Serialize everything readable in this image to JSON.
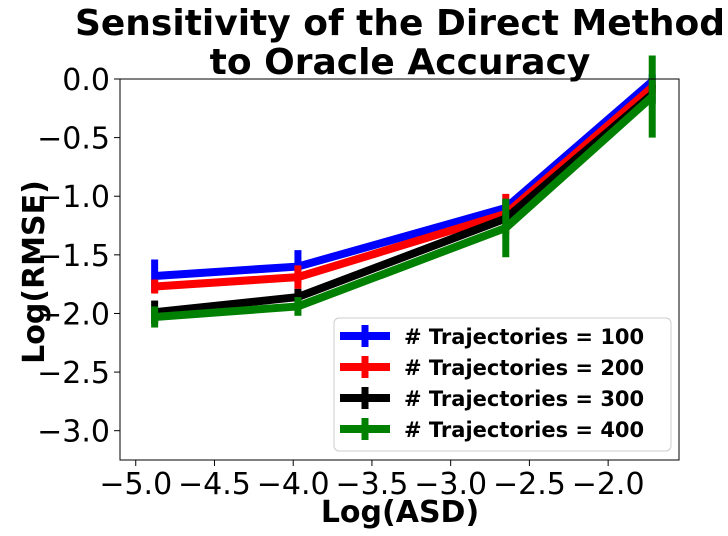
{
  "chart_data": {
    "type": "line",
    "title_lines": [
      "Sensitivity of the Direct Method",
      "to Oracle Accuracy"
    ],
    "xlabel": "Log(ASD)",
    "ylabel": "Log(RMSE)",
    "xlim": [
      -5.1,
      -1.55
    ],
    "ylim": [
      -3.25,
      0.0
    ],
    "xticks": [
      -5.0,
      -4.5,
      -4.0,
      -3.5,
      -3.0,
      -2.5,
      -2.0
    ],
    "xtick_labels": [
      "−5.0",
      "−4.5",
      "−4.0",
      "−3.5",
      "−3.0",
      "−2.5",
      "−2.0"
    ],
    "yticks": [
      0.0,
      -0.5,
      -1.0,
      -1.5,
      -2.0,
      -2.5,
      -3.0
    ],
    "ytick_labels": [
      "0.0",
      "−0.5",
      "−1.0",
      "−1.5",
      "−2.0",
      "−2.5",
      "−3.0"
    ],
    "legend_position": "lower-right",
    "x": [
      -4.88,
      -3.97,
      -2.65,
      -1.72
    ],
    "series": [
      {
        "name": "# Trajectories = 100",
        "color": "#0000ff",
        "values": [
          -1.68,
          -1.6,
          -1.1,
          -0.02
        ],
        "err": [
          0.14,
          0.14,
          0.07,
          0.06
        ]
      },
      {
        "name": "# Trajectories = 200",
        "color": "#ff0000",
        "values": [
          -1.77,
          -1.69,
          -1.15,
          -0.07
        ],
        "err": [
          0.06,
          0.1,
          0.17,
          0.05
        ]
      },
      {
        "name": "# Trajectories = 300",
        "color": "#000000",
        "values": [
          -1.99,
          -1.86,
          -1.19,
          -0.13
        ],
        "err": [
          0.1,
          0.07,
          0.05,
          0.08
        ]
      },
      {
        "name": "# Trajectories = 400",
        "color": "#008000",
        "values": [
          -2.03,
          -1.94,
          -1.27,
          -0.15
        ],
        "err": [
          0.09,
          0.08,
          0.25,
          0.35
        ]
      }
    ]
  }
}
